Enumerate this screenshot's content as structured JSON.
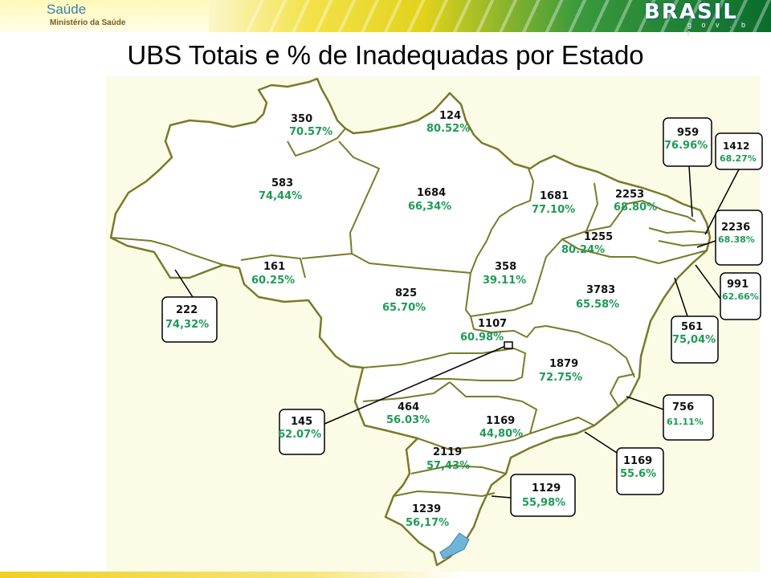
{
  "header": {
    "logo_text": "Saúde",
    "ministry": "Ministério da Saúde",
    "brand": "BRASIL",
    "brand_sub": "g o v . b r"
  },
  "title": "UBS Totais e % de Inadequadas por Estado",
  "states": [
    {
      "id": "rr",
      "total": "350",
      "pct": "70.57%"
    },
    {
      "id": "ap",
      "total": "124",
      "pct": "80.52%"
    },
    {
      "id": "am",
      "total": "583",
      "pct": "74,44%"
    },
    {
      "id": "pa",
      "total": "1684",
      "pct": "66,34%"
    },
    {
      "id": "ma",
      "total": "1681",
      "pct": "77.10%"
    },
    {
      "id": "ce",
      "total": "2253",
      "pct": "68.80%"
    },
    {
      "id": "pi",
      "total": "1255",
      "pct": "80.24%"
    },
    {
      "id": "rn",
      "total": "959",
      "pct": "76.96%"
    },
    {
      "id": "pb",
      "total": "1412",
      "pct": "68.27%"
    },
    {
      "id": "pe",
      "total": "2236",
      "pct": "68.38%"
    },
    {
      "id": "al",
      "total": "991",
      "pct": "62.66%"
    },
    {
      "id": "se",
      "total": "561",
      "pct": "75,04%"
    },
    {
      "id": "ro",
      "total": "161",
      "pct": "60.25%"
    },
    {
      "id": "ac",
      "total": "222",
      "pct": "74,32%"
    },
    {
      "id": "mt",
      "total": "825",
      "pct": "65.70%"
    },
    {
      "id": "to",
      "total": "358",
      "pct": "39.11%"
    },
    {
      "id": "ba",
      "total": "3783",
      "pct": "65.58%"
    },
    {
      "id": "go",
      "total": "1107",
      "pct": "60.98%"
    },
    {
      "id": "df",
      "total": "145",
      "pct": "62.07%"
    },
    {
      "id": "mg",
      "total": "1879",
      "pct": "72.75%"
    },
    {
      "id": "es",
      "total": "756",
      "pct": "61.11%"
    },
    {
      "id": "ms",
      "total": "464",
      "pct": "56.03%"
    },
    {
      "id": "sp",
      "total": "1169",
      "pct": "44,80%"
    },
    {
      "id": "rj",
      "total": "1169",
      "pct": "55.6%"
    },
    {
      "id": "pr",
      "total": "2119",
      "pct": "57,43%"
    },
    {
      "id": "sc",
      "total": "1129",
      "pct": "55,98%"
    },
    {
      "id": "rs",
      "total": "1239",
      "pct": "56,17%"
    }
  ]
}
